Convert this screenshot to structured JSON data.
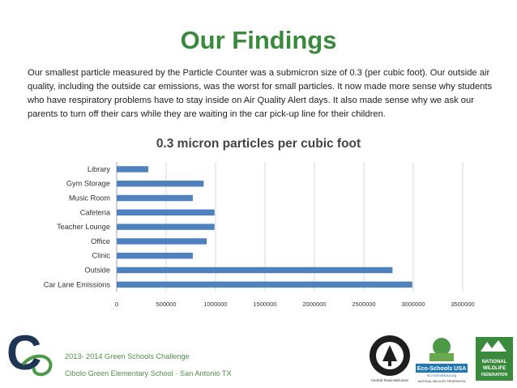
{
  "slide": {
    "title": "Our Findings",
    "intro": "Our smallest particle measured by the Particle Counter was a submicron size of 0.3 (per cubic foot). Our outside air quality, including the outside car emissions, was the worst for small particles. It now made more sense why students who have respiratory problems have to stay inside on Air Quality Alert days. It also made sense why we ask our parents to turn off their cars while they are waiting in the car pick-up line for their children."
  },
  "chart_data": {
    "type": "bar",
    "orientation": "horizontal",
    "title": "0.3 micron particles per cubic foot",
    "xlabel": "",
    "ylabel": "",
    "categories": [
      "Library",
      "Gym Storage",
      "Music Room",
      "Cafeteria",
      "Teacher Lounge",
      "Office",
      "Clinic",
      "Outside",
      "Car Lane Emissions"
    ],
    "values": [
      320000,
      880000,
      770000,
      990000,
      990000,
      910000,
      770000,
      2790000,
      2990000
    ],
    "xlim": [
      0,
      3500000
    ],
    "xticks": [
      "0",
      "500000",
      "1000000",
      "1500000",
      "2000000",
      "2500000",
      "3000000",
      "3500000"
    ],
    "grid": "vertical",
    "legend": "none",
    "bar_color": "#4f81bd"
  },
  "footer": {
    "line1": "2013- 2014 Green Schools Challenge",
    "line2": "Cibolo Green Elementary School · San Antonio TX"
  },
  "logos": {
    "school": "C",
    "usgbc_ring": "U.S. GREEN BUILDING COUNCIL",
    "usgbc_caption": "Central Texas-Balcones",
    "ecoschools_title": "Eco-Schools USA",
    "ecoschools_sub": "eco-schoolsusa.org",
    "ecoschools_caption": "NATIONAL WILDLIFE FEDERATION",
    "nwf_lines": [
      "NATIONAL",
      "WILDLIFE",
      "FEDERATION"
    ]
  }
}
